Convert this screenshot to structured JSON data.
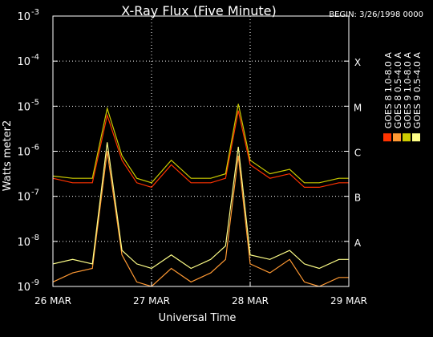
{
  "chart_data": {
    "type": "line",
    "title": "X-Ray Flux (Five Minute)",
    "begin_label": "BEGIN: 3/26/1998 0000",
    "xlabel": "Universal Time",
    "ylabel": "Watts meter2",
    "y_scale": "log",
    "ylim_exp": [
      -9,
      -3
    ],
    "y_ticks": [
      {
        "base": "10",
        "exp": "-9"
      },
      {
        "base": "10",
        "exp": "-8"
      },
      {
        "base": "10",
        "exp": "-7"
      },
      {
        "base": "10",
        "exp": "-6"
      },
      {
        "base": "10",
        "exp": "-5"
      },
      {
        "base": "10",
        "exp": "-4"
      },
      {
        "base": "10",
        "exp": "-3"
      }
    ],
    "x_ticks": [
      "26 MAR",
      "27 MAR",
      "28 MAR",
      "29 MAR"
    ],
    "xlim_days": [
      0,
      3
    ],
    "x_gridlines_days": [
      1,
      2
    ],
    "flare_classes": [
      {
        "label": "A",
        "exp": -8
      },
      {
        "label": "B",
        "exp": -7
      },
      {
        "label": "C",
        "exp": -6
      },
      {
        "label": "M",
        "exp": -5
      },
      {
        "label": "X",
        "exp": -4
      }
    ],
    "legend_placement": "right",
    "grid": "dotted at decades and day boundaries",
    "series": [
      {
        "name": "GOES 8 1.0-8.0 A",
        "color": "#ff3300",
        "x_days": [
          0,
          0.2,
          0.4,
          0.55,
          0.7,
          0.85,
          1.0,
          1.2,
          1.4,
          1.6,
          1.75,
          1.88,
          2.0,
          2.2,
          2.4,
          2.55,
          2.7,
          2.9,
          3.0
        ],
        "log_flux": [
          -6.6,
          -6.7,
          -6.7,
          -5.2,
          -6.2,
          -6.7,
          -6.8,
          -6.3,
          -6.7,
          -6.7,
          -6.6,
          -5.1,
          -6.3,
          -6.6,
          -6.5,
          -6.8,
          -6.8,
          -6.7,
          -6.7
        ]
      },
      {
        "name": "GOES 8 0.5-4.0 A",
        "color": "#ff9933",
        "x_days": [
          0,
          0.2,
          0.4,
          0.55,
          0.7,
          0.85,
          1.0,
          1.2,
          1.4,
          1.6,
          1.75,
          1.88,
          2.0,
          2.2,
          2.4,
          2.55,
          2.7,
          2.9,
          3.0
        ],
        "log_flux": [
          -8.9,
          -8.7,
          -8.6,
          -6.0,
          -8.3,
          -8.9,
          -9.0,
          -8.6,
          -8.9,
          -8.7,
          -8.4,
          -6.1,
          -8.5,
          -8.7,
          -8.4,
          -8.9,
          -9.0,
          -8.8,
          -8.8
        ]
      },
      {
        "name": "GOES 9 1.0-8.0 A",
        "color": "#cccc00",
        "x_days": [
          0,
          0.2,
          0.4,
          0.55,
          0.7,
          0.85,
          1.0,
          1.2,
          1.4,
          1.6,
          1.75,
          1.88,
          2.0,
          2.2,
          2.4,
          2.55,
          2.7,
          2.9,
          3.0
        ],
        "log_flux": [
          -6.55,
          -6.6,
          -6.6,
          -5.05,
          -6.1,
          -6.6,
          -6.7,
          -6.2,
          -6.6,
          -6.6,
          -6.5,
          -4.95,
          -6.2,
          -6.5,
          -6.4,
          -6.7,
          -6.7,
          -6.6,
          -6.6
        ]
      },
      {
        "name": "GOES 9 0.5-4.0 A",
        "color": "#ffff88",
        "x_days": [
          0,
          0.2,
          0.4,
          0.55,
          0.7,
          0.85,
          1.0,
          1.2,
          1.4,
          1.6,
          1.75,
          1.88,
          2.0,
          2.2,
          2.4,
          2.55,
          2.7,
          2.9,
          3.0
        ],
        "log_flux": [
          -8.5,
          -8.4,
          -8.5,
          -5.8,
          -8.2,
          -8.5,
          -8.6,
          -8.3,
          -8.6,
          -8.4,
          -8.1,
          -5.9,
          -8.3,
          -8.4,
          -8.2,
          -8.5,
          -8.6,
          -8.4,
          -8.4
        ]
      }
    ]
  }
}
